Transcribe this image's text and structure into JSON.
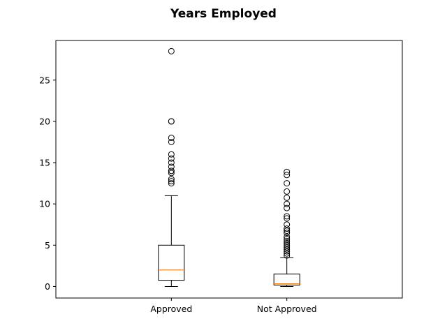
{
  "chart_data": {
    "type": "box",
    "title": "Years Employed",
    "xlabel": "",
    "ylabel": "",
    "categories": [
      "Approved",
      "Not Approved"
    ],
    "ylim": [
      -1.4,
      29.8
    ],
    "yticks": [
      0,
      5,
      10,
      15,
      20,
      25
    ],
    "grid": false,
    "colors": {
      "box": "#000000",
      "median": "#ff7f0e",
      "flier": "#000000"
    },
    "boxes": [
      {
        "name": "Approved",
        "whisker_low": 0.0,
        "q1": 0.75,
        "median": 2.0,
        "q3": 5.0,
        "whisker_high": 11.0,
        "fliers": [
          28.5,
          20.0,
          20.0,
          18.0,
          17.5,
          16.0,
          15.5,
          15.0,
          14.5,
          14.0,
          14.0,
          13.75,
          13.0,
          12.75,
          12.5
        ]
      },
      {
        "name": "Not Approved",
        "whisker_low": 0.0,
        "q1": 0.17,
        "median": 0.33,
        "q3": 1.5,
        "whisker_high": 3.5,
        "fliers": [
          13.875,
          13.5,
          12.5,
          11.5,
          10.75,
          10.0,
          9.5,
          8.5,
          8.25,
          7.5,
          7.0,
          6.75,
          6.5,
          6.0,
          5.75,
          5.5,
          5.25,
          5.0,
          4.75,
          4.5,
          4.25,
          4.0,
          3.75
        ]
      }
    ]
  }
}
